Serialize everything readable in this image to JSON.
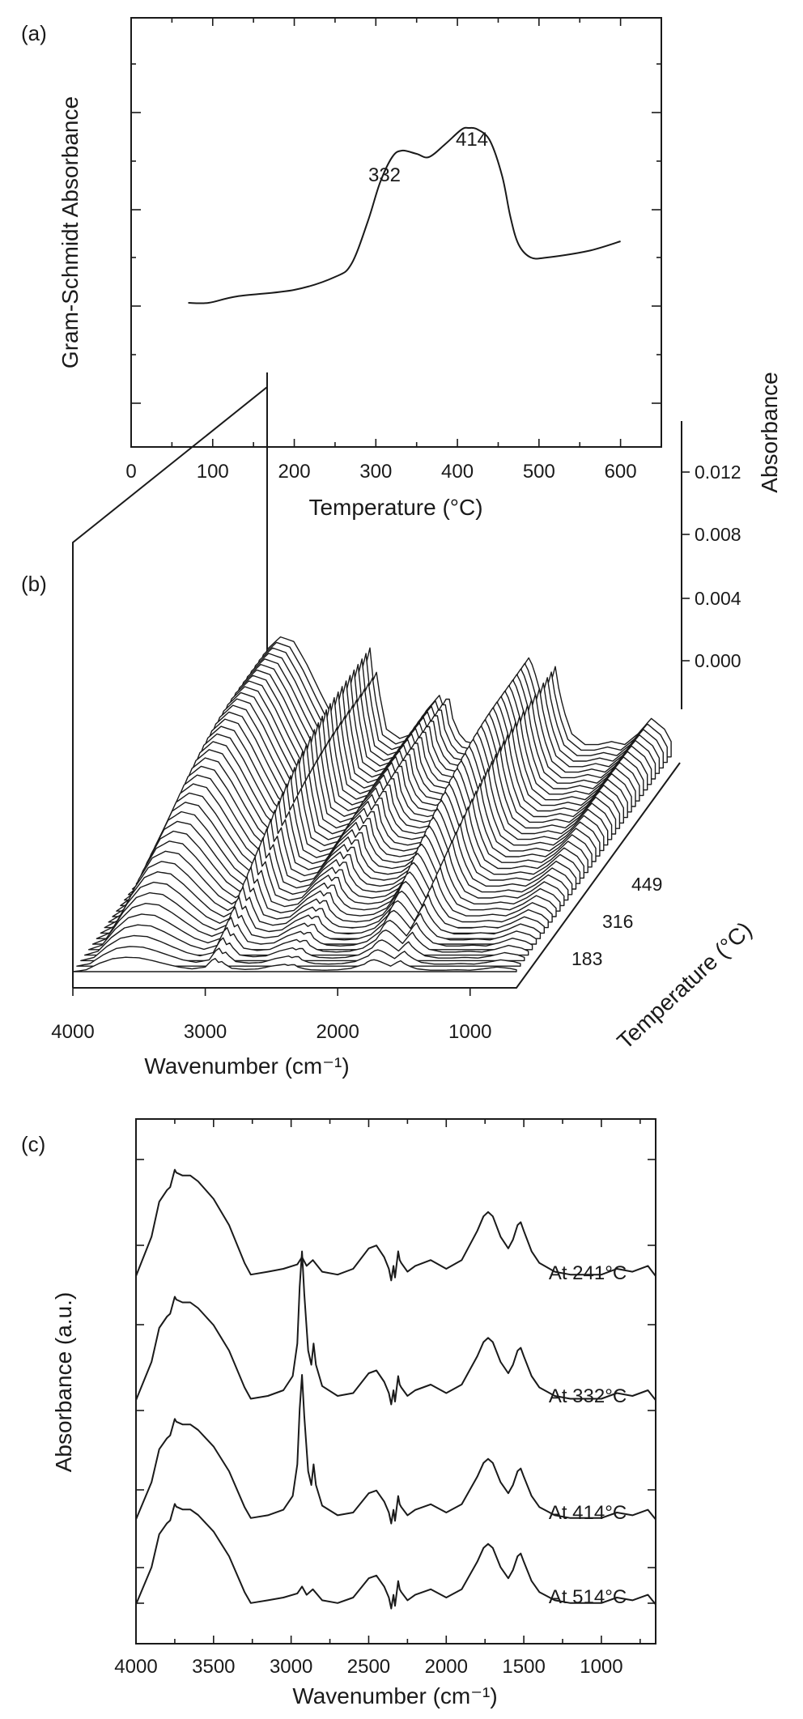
{
  "panel_a": {
    "label": "(a)",
    "chart_data": {
      "type": "line",
      "xlabel": "Temperature (°C)",
      "ylabel": "Gram-Schmidt Absorbance",
      "xlim": [
        0,
        650
      ],
      "x_ticks": [
        "0",
        "100",
        "200",
        "300",
        "400",
        "500",
        "600"
      ],
      "y_ticks_labeled": false,
      "annotations": [
        "332",
        "414"
      ],
      "series": [
        {
          "x": [
            70,
            95,
            130,
            200,
            250,
            270,
            290,
            305,
            320,
            332,
            350,
            365,
            385,
            405,
            414,
            425,
            440,
            455,
            465,
            475,
            490,
            510,
            560,
            600
          ],
          "y": [
            0.02,
            0.02,
            0.06,
            0.1,
            0.18,
            0.26,
            0.52,
            0.76,
            0.92,
            0.96,
            0.94,
            0.92,
            1.0,
            1.09,
            1.1,
            1.09,
            1.02,
            0.8,
            0.55,
            0.38,
            0.3,
            0.3,
            0.34,
            0.4
          ]
        }
      ]
    }
  },
  "panel_b": {
    "label": "(b)",
    "chart_data": {
      "type": "line",
      "view": "3d-waterfall",
      "xlabel": "Wavenumber (cm⁻¹)",
      "x_ticks": [
        "4000",
        "3000",
        "2000",
        "1000"
      ],
      "xlim": [
        4000,
        650
      ],
      "zlabel": "Absorbance",
      "z_ticks": [
        "0.012",
        "0.008",
        "0.004",
        "0.000"
      ],
      "ylabel": "Temperature (°C)",
      "y_ticks": [
        "183",
        "316",
        "449"
      ],
      "spectrum_count": 40,
      "profile": {
        "wavenumber": [
          4000,
          3900,
          3800,
          3700,
          3600,
          3500,
          3400,
          3300,
          3200,
          3100,
          3000,
          2960,
          2930,
          2900,
          2880,
          2850,
          2800,
          2700,
          2600,
          2500,
          2400,
          2360,
          2340,
          2300,
          2250,
          2200,
          2100,
          2000,
          1900,
          1800,
          1760,
          1720,
          1680,
          1600,
          1540,
          1520,
          1500,
          1460,
          1400,
          1300,
          1200,
          1100,
          1000,
          900,
          800,
          700,
          650
        ],
        "absorbance": [
          0.0,
          0.001,
          0.0045,
          0.007,
          0.0078,
          0.0075,
          0.006,
          0.0042,
          0.0025,
          0.0015,
          0.0025,
          0.0055,
          0.0075,
          0.005,
          0.0058,
          0.004,
          0.0018,
          0.0012,
          0.0015,
          0.003,
          0.004,
          0.003,
          0.0045,
          0.0025,
          0.0015,
          0.001,
          0.0008,
          0.001,
          0.0018,
          0.004,
          0.006,
          0.0065,
          0.0055,
          0.003,
          0.0055,
          0.006,
          0.0045,
          0.003,
          0.0015,
          0.0008,
          0.0008,
          0.001,
          0.0008,
          0.0015,
          0.0025,
          0.0018,
          0.001
        ]
      }
    }
  },
  "panel_c": {
    "label": "(c)",
    "chart_data": {
      "type": "line",
      "xlabel": "Wavenumber (cm⁻¹)",
      "ylabel": "Absorbance (a.u.)",
      "xlim": [
        4000,
        650
      ],
      "x_ticks": [
        "4000",
        "3500",
        "3000",
        "2500",
        "2000",
        "1500",
        "1000"
      ],
      "y_ticks_labeled": false,
      "series": [
        {
          "name": "At 241°C",
          "x": [
            4000,
            3900,
            3850,
            3800,
            3780,
            3750,
            3740,
            3700,
            3650,
            3600,
            3500,
            3400,
            3300,
            3260,
            3150,
            3050,
            2960,
            2930,
            2900,
            2860,
            2800,
            2700,
            2600,
            2500,
            2450,
            2400,
            2370,
            2355,
            2340,
            2330,
            2310,
            2300,
            2290,
            2250,
            2200,
            2100,
            2000,
            1900,
            1800,
            1760,
            1730,
            1700,
            1650,
            1600,
            1570,
            1540,
            1520,
            1500,
            1450,
            1400,
            1300,
            1200,
            1000,
            900,
            800,
            700,
            650
          ],
          "y": [
            0.05,
            0.32,
            0.56,
            0.64,
            0.66,
            0.78,
            0.76,
            0.74,
            0.74,
            0.7,
            0.58,
            0.4,
            0.14,
            0.06,
            0.08,
            0.1,
            0.13,
            0.18,
            0.12,
            0.16,
            0.08,
            0.06,
            0.1,
            0.24,
            0.26,
            0.18,
            0.1,
            0.02,
            0.12,
            0.04,
            0.22,
            0.16,
            0.14,
            0.08,
            0.12,
            0.16,
            0.1,
            0.16,
            0.36,
            0.46,
            0.49,
            0.46,
            0.32,
            0.24,
            0.3,
            0.4,
            0.42,
            0.36,
            0.22,
            0.14,
            0.08,
            0.06,
            0.06,
            0.1,
            0.08,
            0.12,
            0.05
          ]
        },
        {
          "name": "At 332°C",
          "x": [
            4000,
            3900,
            3850,
            3800,
            3780,
            3750,
            3740,
            3700,
            3650,
            3600,
            3500,
            3400,
            3300,
            3260,
            3150,
            3050,
            2990,
            2960,
            2945,
            2930,
            2915,
            2890,
            2870,
            2855,
            2840,
            2800,
            2700,
            2600,
            2500,
            2450,
            2400,
            2370,
            2355,
            2340,
            2330,
            2310,
            2300,
            2290,
            2250,
            2200,
            2100,
            2000,
            1900,
            1800,
            1760,
            1730,
            1700,
            1650,
            1600,
            1570,
            1540,
            1520,
            1500,
            1450,
            1400,
            1300,
            1200,
            1000,
            900,
            800,
            700,
            650
          ],
          "y": [
            0.05,
            0.32,
            0.56,
            0.64,
            0.66,
            0.78,
            0.76,
            0.74,
            0.74,
            0.7,
            0.58,
            0.4,
            0.14,
            0.06,
            0.08,
            0.12,
            0.22,
            0.45,
            0.85,
            1.1,
            0.8,
            0.4,
            0.3,
            0.45,
            0.3,
            0.15,
            0.08,
            0.1,
            0.24,
            0.26,
            0.18,
            0.1,
            0.02,
            0.12,
            0.04,
            0.22,
            0.16,
            0.14,
            0.08,
            0.12,
            0.16,
            0.1,
            0.16,
            0.36,
            0.46,
            0.49,
            0.46,
            0.32,
            0.24,
            0.3,
            0.4,
            0.42,
            0.36,
            0.22,
            0.14,
            0.08,
            0.06,
            0.06,
            0.1,
            0.08,
            0.12,
            0.05
          ]
        },
        {
          "name": "At 414°C",
          "x": [
            4000,
            3900,
            3850,
            3800,
            3780,
            3750,
            3740,
            3700,
            3650,
            3600,
            3500,
            3400,
            3300,
            3260,
            3150,
            3050,
            2990,
            2960,
            2945,
            2930,
            2915,
            2890,
            2870,
            2855,
            2840,
            2800,
            2700,
            2600,
            2500,
            2450,
            2400,
            2370,
            2355,
            2340,
            2330,
            2310,
            2300,
            2290,
            2250,
            2200,
            2100,
            2000,
            1900,
            1800,
            1760,
            1730,
            1700,
            1650,
            1600,
            1570,
            1540,
            1520,
            1500,
            1450,
            1400,
            1300,
            1200,
            1000,
            900,
            800,
            700,
            650
          ],
          "y": [
            0.05,
            0.32,
            0.56,
            0.64,
            0.66,
            0.78,
            0.76,
            0.74,
            0.74,
            0.7,
            0.58,
            0.4,
            0.14,
            0.06,
            0.08,
            0.12,
            0.22,
            0.45,
            0.85,
            1.1,
            0.8,
            0.4,
            0.3,
            0.45,
            0.3,
            0.15,
            0.08,
            0.1,
            0.24,
            0.26,
            0.18,
            0.1,
            0.02,
            0.12,
            0.04,
            0.22,
            0.16,
            0.14,
            0.08,
            0.12,
            0.16,
            0.1,
            0.16,
            0.36,
            0.46,
            0.49,
            0.46,
            0.32,
            0.24,
            0.3,
            0.4,
            0.42,
            0.36,
            0.22,
            0.14,
            0.08,
            0.06,
            0.06,
            0.1,
            0.08,
            0.12,
            0.05
          ]
        },
        {
          "name": "At 514°C",
          "x": [
            4000,
            3900,
            3850,
            3800,
            3780,
            3750,
            3740,
            3700,
            3650,
            3600,
            3500,
            3400,
            3300,
            3260,
            3150,
            3050,
            2960,
            2930,
            2900,
            2860,
            2800,
            2700,
            2600,
            2500,
            2450,
            2400,
            2370,
            2355,
            2340,
            2330,
            2310,
            2300,
            2290,
            2250,
            2200,
            2100,
            2000,
            1900,
            1800,
            1760,
            1730,
            1700,
            1650,
            1600,
            1570,
            1540,
            1520,
            1500,
            1450,
            1400,
            1300,
            1200,
            1000,
            900,
            800,
            700,
            650
          ],
          "y": [
            0.05,
            0.32,
            0.56,
            0.64,
            0.66,
            0.78,
            0.76,
            0.74,
            0.74,
            0.7,
            0.58,
            0.4,
            0.14,
            0.06,
            0.08,
            0.1,
            0.13,
            0.18,
            0.12,
            0.16,
            0.08,
            0.06,
            0.1,
            0.24,
            0.26,
            0.18,
            0.1,
            0.02,
            0.12,
            0.04,
            0.22,
            0.16,
            0.14,
            0.08,
            0.12,
            0.16,
            0.1,
            0.16,
            0.36,
            0.46,
            0.49,
            0.46,
            0.32,
            0.24,
            0.3,
            0.4,
            0.42,
            0.36,
            0.22,
            0.14,
            0.08,
            0.06,
            0.06,
            0.1,
            0.08,
            0.12,
            0.05
          ]
        }
      ]
    }
  }
}
